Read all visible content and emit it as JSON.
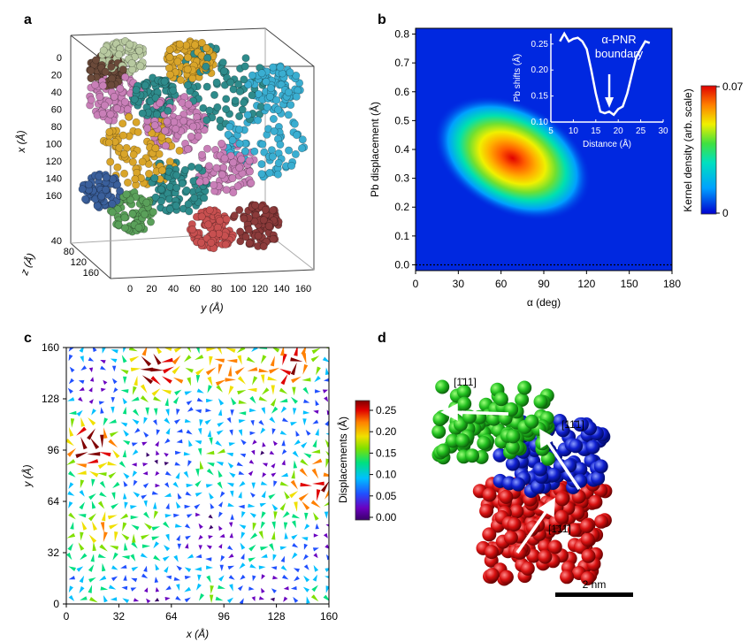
{
  "panels": {
    "a": {
      "letter": "a",
      "x_axis_label": "x (Å)",
      "y_axis_label": "y (Å)",
      "z_axis_label": "z (Å)",
      "x_ticks": [
        "0",
        "20",
        "40",
        "60",
        "80",
        "100",
        "120",
        "140",
        "160"
      ],
      "y_ticks": [
        "0",
        "20",
        "40",
        "60",
        "80",
        "100",
        "120",
        "140",
        "160"
      ],
      "z_ticks": [
        "40",
        "80",
        "120",
        "160"
      ],
      "cluster_colors": [
        "#2e8b8b",
        "#d9a52a",
        "#c97fb8",
        "#3aaed1",
        "#8b3a3a",
        "#c85050",
        "#3a5f9b",
        "#5aa05a",
        "#6b4a3a",
        "#b8c9a0"
      ]
    },
    "b": {
      "letter": "b",
      "colorbar_label": "Kernel density (arb. scale)",
      "colorbar_max": "0.07",
      "colorbar_min": "0",
      "inset": {
        "ylabel": "Pb shifts (Å)",
        "xlabel": "Distance (Å)",
        "annotation_line1": "α-PNR",
        "annotation_line2": "boundary",
        "x_ticks": [
          "5",
          "10",
          "15",
          "20",
          "25",
          "30"
        ],
        "y_ticks": [
          "0.10",
          "0.15",
          "0.20",
          "0.25"
        ]
      }
    },
    "c": {
      "letter": "c",
      "colorbar_label": "Displacements (Å)",
      "colorbar_ticks": [
        "0.25",
        "0.20",
        "0.15",
        "0.10",
        "0.05",
        "0.00"
      ]
    },
    "d": {
      "letter": "d",
      "label_green": "[1̄11]",
      "label_blue": "[11̄1]",
      "label_red": "[1̄11̄]",
      "scale_bar": "2 nm"
    }
  },
  "chart_data": [
    {
      "type": "heatmap",
      "panel": "b",
      "xlabel": "α (deg)",
      "ylabel": "Pb displacement (Å)",
      "x_ticks": [
        0,
        30,
        60,
        90,
        120,
        150,
        180
      ],
      "y_ticks": [
        0.0,
        0.1,
        0.2,
        0.3,
        0.4,
        0.5,
        0.6,
        0.7,
        0.8
      ],
      "xlim": [
        0,
        180
      ],
      "ylim": [
        -0.02,
        0.82
      ],
      "peak": {
        "x": 68,
        "y": 0.37,
        "value": 0.07
      },
      "colorscale": [
        "#0000d0",
        "#00a0ff",
        "#00e0c0",
        "#40e040",
        "#f0f000",
        "#ff8000",
        "#e00000"
      ],
      "colorbar_range": [
        0,
        0.07
      ]
    },
    {
      "type": "line",
      "panel": "b-inset",
      "xlabel": "Distance (Å)",
      "ylabel": "Pb shifts (Å)",
      "xlim": [
        5,
        30
      ],
      "ylim": [
        0.1,
        0.27
      ],
      "x": [
        7,
        8,
        9,
        10,
        11,
        12,
        13,
        14,
        15,
        16,
        17,
        18,
        19,
        20,
        21,
        22,
        23,
        24,
        25,
        26,
        27
      ],
      "y": [
        0.255,
        0.27,
        0.255,
        0.26,
        0.262,
        0.255,
        0.24,
        0.2,
        0.155,
        0.12,
        0.117,
        0.12,
        0.114,
        0.125,
        0.13,
        0.155,
        0.19,
        0.225,
        0.24,
        0.255,
        0.252
      ]
    },
    {
      "type": "scatter",
      "panel": "c",
      "xlabel": "x (Å)",
      "ylabel": "y (Å)",
      "x_ticks": [
        0,
        32,
        64,
        96,
        128,
        160
      ],
      "y_ticks": [
        0,
        32,
        64,
        96,
        128,
        160
      ],
      "xlim": [
        0,
        160
      ],
      "ylim": [
        0,
        160
      ],
      "colorbar_range": [
        0,
        0.27
      ],
      "colorscale": [
        "#3a006a",
        "#6a00c0",
        "#2050ff",
        "#00c0ff",
        "#00e080",
        "#80e000",
        "#f0e000",
        "#ff8000",
        "#e00000",
        "#800000"
      ]
    }
  ]
}
